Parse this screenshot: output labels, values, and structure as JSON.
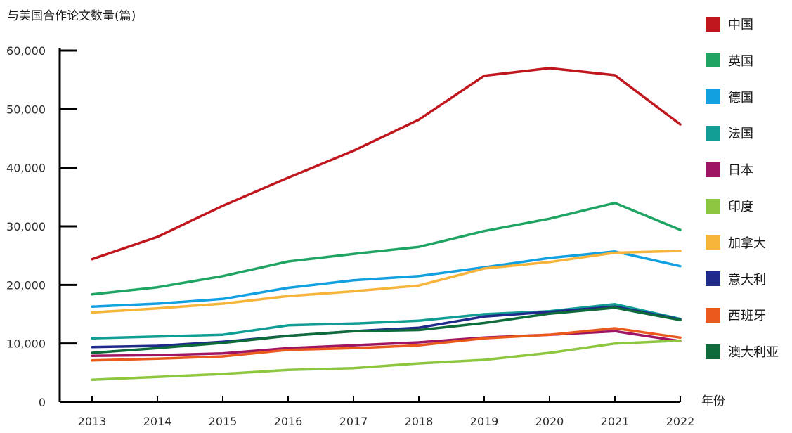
{
  "chart_data": {
    "type": "line",
    "title": "",
    "ylabel": "与美国合作论文数量(篇)",
    "xlabel": "年份",
    "ylim": [
      0,
      60000
    ],
    "yticks": [
      "0",
      "10,000",
      "20,000",
      "30,000",
      "40,000",
      "50,000",
      "60,000"
    ],
    "ytick_values": [
      0,
      10000,
      20000,
      30000,
      40000,
      50000,
      60000
    ],
    "x": [
      "2013",
      "2014",
      "2015",
      "2016",
      "2017",
      "2018",
      "2019",
      "2020",
      "2021",
      "2022"
    ],
    "grid": false,
    "legend_position": "right",
    "series": [
      {
        "name": "中国",
        "color": "#c0171f",
        "values": [
          24400,
          28200,
          33500,
          38300,
          42900,
          48200,
          55700,
          57000,
          55800,
          47400
        ]
      },
      {
        "name": "英国",
        "color": "#1fa463",
        "values": [
          18400,
          19600,
          21500,
          24000,
          25300,
          26500,
          29200,
          31300,
          34000,
          29400
        ]
      },
      {
        "name": "德国",
        "color": "#12a0e0",
        "values": [
          16300,
          16800,
          17600,
          19500,
          20800,
          21500,
          23000,
          24600,
          25700,
          23200
        ]
      },
      {
        "name": "法国",
        "color": "#119d94",
        "values": [
          10900,
          11200,
          11500,
          13100,
          13400,
          13900,
          15000,
          15500,
          16700,
          14200
        ]
      },
      {
        "name": "日本",
        "color": "#9e1563",
        "values": [
          7900,
          8000,
          8300,
          9200,
          9700,
          10200,
          11000,
          11500,
          12100,
          10400
        ]
      },
      {
        "name": "印度",
        "color": "#8dc63f",
        "values": [
          3800,
          4300,
          4800,
          5500,
          5800,
          6600,
          7200,
          8400,
          10000,
          10500
        ]
      },
      {
        "name": "加拿大",
        "color": "#f6b53a",
        "values": [
          15300,
          16000,
          16800,
          18100,
          18900,
          19900,
          22800,
          23900,
          25500,
          25800
        ]
      },
      {
        "name": "意大利",
        "color": "#1f2a8a",
        "values": [
          9400,
          9600,
          10300,
          11300,
          12100,
          12700,
          14600,
          15400,
          16300,
          14100
        ]
      },
      {
        "name": "西班牙",
        "color": "#ea5a1c",
        "values": [
          7100,
          7400,
          7800,
          8900,
          9200,
          9700,
          10900,
          11500,
          12600,
          11000
        ]
      },
      {
        "name": "澳大利亚",
        "color": "#0e6b3a",
        "values": [
          8400,
          9200,
          10100,
          11300,
          12100,
          12300,
          13500,
          15100,
          16100,
          14000
        ]
      }
    ]
  }
}
